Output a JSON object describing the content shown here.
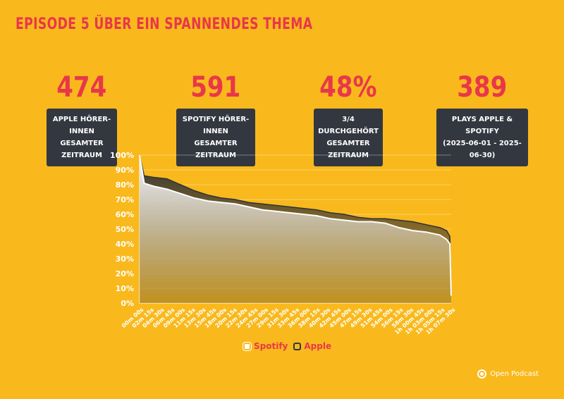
{
  "header": {
    "title": "EPISODE 5 ÜBER EIN SPANNENDES THEMA"
  },
  "stats": [
    {
      "value": "474",
      "line1": "APPLE HÖRER-INNEN",
      "line2": "GESAMTER ZEITRAUM"
    },
    {
      "value": "591",
      "line1": "SPOTIFY HÖRER-INNEN",
      "line2": "GESAMTER ZEITRAUM"
    },
    {
      "value": "48%",
      "line1": "3/4 DURCHGEHÖRT",
      "line2": "GESAMTER ZEITRAUM"
    },
    {
      "value": "389",
      "line1": "PLAYS APPLE & SPOTIFY",
      "line2": "(2025-06-01 - 2025-06-30)"
    }
  ],
  "colors": {
    "background": "#F9B91C",
    "accent": "#E8374A",
    "dark": "#333740",
    "white": "#FFFFFF"
  },
  "chart_data": {
    "type": "area",
    "title": "",
    "xlabel": "",
    "ylabel": "",
    "ylim": [
      0,
      100
    ],
    "y_ticks": [
      "0%",
      "10%",
      "20%",
      "30%",
      "40%",
      "50%",
      "60%",
      "70%",
      "80%",
      "90%",
      "100%"
    ],
    "grid": true,
    "x_ticks": [
      "00m 00s",
      "02m 15s",
      "04m 30s",
      "06m 45s",
      "09m 00s",
      "11m 15s",
      "13m 30s",
      "15m 45s",
      "18m 00s",
      "20m 15s",
      "22m 30s",
      "24m 45s",
      "27m 00s",
      "29m 15s",
      "31m 30s",
      "33m 45s",
      "36m 00s",
      "38m 15s",
      "40m 30s",
      "42m 45s",
      "45m 00s",
      "47m 15s",
      "49m 30s",
      "51m 45s",
      "54m 00s",
      "56m 15s",
      "58m 30s",
      "1h 00m 45s",
      "1h 03m 00s",
      "1h 05m 15s",
      "1h 07m 30s"
    ],
    "x_minutes": [
      0,
      1,
      3,
      6,
      9,
      12,
      15,
      18,
      21,
      24,
      27,
      30,
      33,
      36,
      39,
      42,
      45,
      48,
      51,
      54,
      57,
      60,
      63,
      66,
      67.5,
      68.2,
      68.5
    ],
    "series": [
      {
        "name": "Apple",
        "values": [
          100,
          86,
          85,
          84,
          80,
          76,
          73,
          71,
          70,
          68,
          67,
          66,
          65,
          64,
          63,
          61,
          60,
          58,
          57,
          57,
          56,
          55,
          53,
          51,
          49,
          45,
          6
        ]
      },
      {
        "name": "Spotify",
        "values": [
          100,
          81,
          79,
          77,
          74,
          71,
          69,
          68,
          67,
          65,
          63,
          62,
          61,
          60,
          59,
          57,
          56,
          55,
          55,
          54,
          51,
          49,
          48,
          46,
          43,
          40,
          5
        ]
      }
    ],
    "legend": "bottom-center"
  },
  "legend": {
    "spotify": "Spotify",
    "apple": "Apple"
  },
  "brand": {
    "name": "Open Podcast"
  }
}
